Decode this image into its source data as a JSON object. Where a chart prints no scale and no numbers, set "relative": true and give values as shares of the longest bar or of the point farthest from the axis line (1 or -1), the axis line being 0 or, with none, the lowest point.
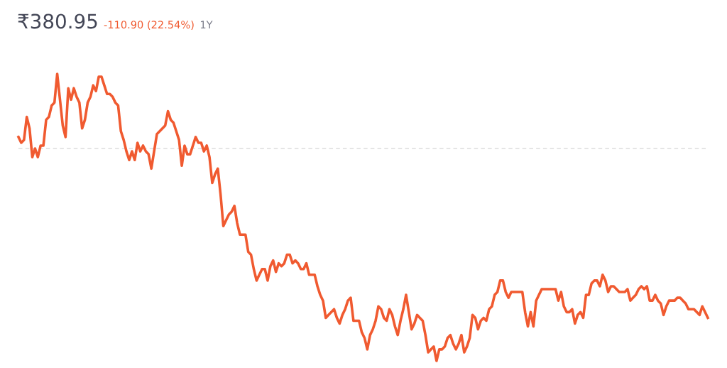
{
  "chart_data": {
    "type": "line",
    "title": "₹380.95",
    "annotations": [
      "-110.90 (22.54%)",
      "1Y"
    ],
    "relative": true,
    "categories": [
      null,
      null,
      null,
      null,
      null,
      null,
      null,
      null,
      null,
      null,
      null,
      null,
      null,
      null,
      null,
      null,
      null,
      null,
      null,
      null,
      null,
      null,
      null,
      null,
      null,
      null,
      null,
      null,
      null,
      null,
      null,
      null,
      null,
      null,
      null,
      null,
      null,
      null,
      null,
      null,
      null,
      null,
      null,
      null,
      null,
      null,
      null,
      null,
      null,
      null,
      null,
      null,
      null,
      null,
      null,
      null,
      null,
      null,
      null,
      null,
      null,
      null,
      null,
      null,
      null,
      null,
      null,
      null,
      null,
      null,
      null,
      null,
      null,
      null,
      null,
      null,
      null,
      null,
      null,
      null,
      null,
      null,
      null,
      null,
      null,
      null,
      null,
      null,
      null,
      null,
      null,
      null,
      null,
      null,
      null,
      null,
      null,
      null,
      null,
      null,
      null,
      null,
      null,
      null,
      null,
      null,
      null,
      null,
      null,
      null,
      null,
      null,
      null,
      null,
      null,
      null,
      null,
      null,
      null,
      null,
      null,
      null,
      null,
      null,
      null,
      null,
      null,
      null,
      null,
      null,
      null,
      null,
      null,
      null,
      null,
      null,
      null,
      null,
      null,
      null,
      null,
      null,
      null,
      null,
      null,
      null,
      null,
      null,
      null,
      null,
      null,
      null,
      null,
      null,
      null,
      null,
      null,
      null,
      null,
      null,
      null,
      null,
      null,
      null,
      null,
      null,
      null,
      null,
      null,
      null,
      null,
      null,
      null,
      null,
      null,
      null,
      null,
      null,
      null,
      null,
      null,
      null,
      null,
      null,
      null,
      null,
      null,
      null,
      null,
      null,
      null,
      null,
      null,
      null,
      null,
      null,
      null,
      null,
      null,
      null,
      null,
      null,
      null,
      null,
      null,
      null,
      null,
      null,
      null,
      null,
      null,
      null,
      null,
      null,
      null,
      null,
      null,
      null,
      null,
      null,
      null,
      null,
      null,
      null,
      null,
      null,
      null,
      null,
      null,
      null,
      null,
      null,
      null,
      null,
      null,
      null,
      null,
      null,
      null,
      null,
      null,
      null,
      null,
      null,
      null,
      null,
      null,
      null,
      null,
      null
    ],
    "series": [
      {
        "color": "#f05a30",
        "values": [
          0.78,
          0.76,
          0.77,
          0.85,
          0.81,
          0.71,
          0.74,
          0.71,
          0.75,
          0.75,
          0.84,
          0.85,
          0.89,
          0.9,
          1.0,
          0.91,
          0.82,
          0.78,
          0.95,
          0.91,
          0.95,
          0.92,
          0.9,
          0.81,
          0.84,
          0.9,
          0.92,
          0.96,
          0.94,
          0.99,
          0.99,
          0.96,
          0.93,
          0.93,
          0.92,
          0.9,
          0.89,
          0.8,
          0.77,
          0.73,
          0.7,
          0.73,
          0.7,
          0.76,
          0.73,
          0.75,
          0.73,
          0.72,
          0.67,
          0.73,
          0.79,
          0.8,
          0.81,
          0.82,
          0.87,
          0.84,
          0.83,
          0.8,
          0.77,
          0.68,
          0.75,
          0.72,
          0.72,
          0.75,
          0.78,
          0.76,
          0.76,
          0.73,
          0.75,
          0.71,
          0.62,
          0.65,
          0.67,
          0.58,
          0.47,
          0.49,
          0.51,
          0.52,
          0.54,
          0.48,
          0.44,
          0.44,
          0.44,
          0.38,
          0.37,
          0.32,
          0.28,
          0.3,
          0.32,
          0.32,
          0.28,
          0.33,
          0.35,
          0.31,
          0.34,
          0.33,
          0.34,
          0.37,
          0.37,
          0.34,
          0.35,
          0.34,
          0.32,
          0.32,
          0.34,
          0.3,
          0.3,
          0.3,
          0.26,
          0.23,
          0.21,
          0.15,
          0.16,
          0.17,
          0.18,
          0.15,
          0.13,
          0.16,
          0.18,
          0.21,
          0.22,
          0.14,
          0.14,
          0.14,
          0.1,
          0.08,
          0.04,
          0.09,
          0.11,
          0.14,
          0.19,
          0.18,
          0.15,
          0.14,
          0.18,
          0.16,
          0.12,
          0.09,
          0.14,
          0.18,
          0.23,
          0.17,
          0.11,
          0.13,
          0.16,
          0.15,
          0.14,
          0.09,
          0.03,
          0.04,
          0.05,
          0.0,
          0.04,
          0.04,
          0.05,
          0.08,
          0.09,
          0.06,
          0.04,
          0.06,
          0.09,
          0.03,
          0.05,
          0.08,
          0.16,
          0.15,
          0.11,
          0.14,
          0.15,
          0.14,
          0.18,
          0.19,
          0.23,
          0.24,
          0.28,
          0.28,
          0.24,
          0.22,
          0.24,
          0.24,
          0.24,
          0.24,
          0.24,
          0.17,
          0.12,
          0.17,
          0.12,
          0.21,
          0.23,
          0.25,
          0.25,
          0.25,
          0.25,
          0.25,
          0.25,
          0.21,
          0.24,
          0.19,
          0.17,
          0.17,
          0.18,
          0.13,
          0.16,
          0.17,
          0.15,
          0.23,
          0.23,
          0.27,
          0.28,
          0.28,
          0.26,
          0.3,
          0.28,
          0.24,
          0.26,
          0.26,
          0.25,
          0.24,
          0.24,
          0.24,
          0.25,
          0.21,
          0.22,
          0.23,
          0.25,
          0.26,
          0.25,
          0.26,
          0.21,
          0.21,
          0.23,
          0.21,
          0.2,
          0.16,
          0.19,
          0.21,
          0.21,
          0.21,
          0.22,
          0.22,
          0.21,
          0.2,
          0.18,
          0.18,
          0.18,
          0.17,
          0.16,
          0.19,
          0.17,
          0.15
        ]
      }
    ],
    "ref_lines": [
      {
        "axis": "y",
        "value": 0.74,
        "color": "#dddddd",
        "line_style": "dashed"
      }
    ],
    "marker": "none",
    "line_style": "solid"
  }
}
